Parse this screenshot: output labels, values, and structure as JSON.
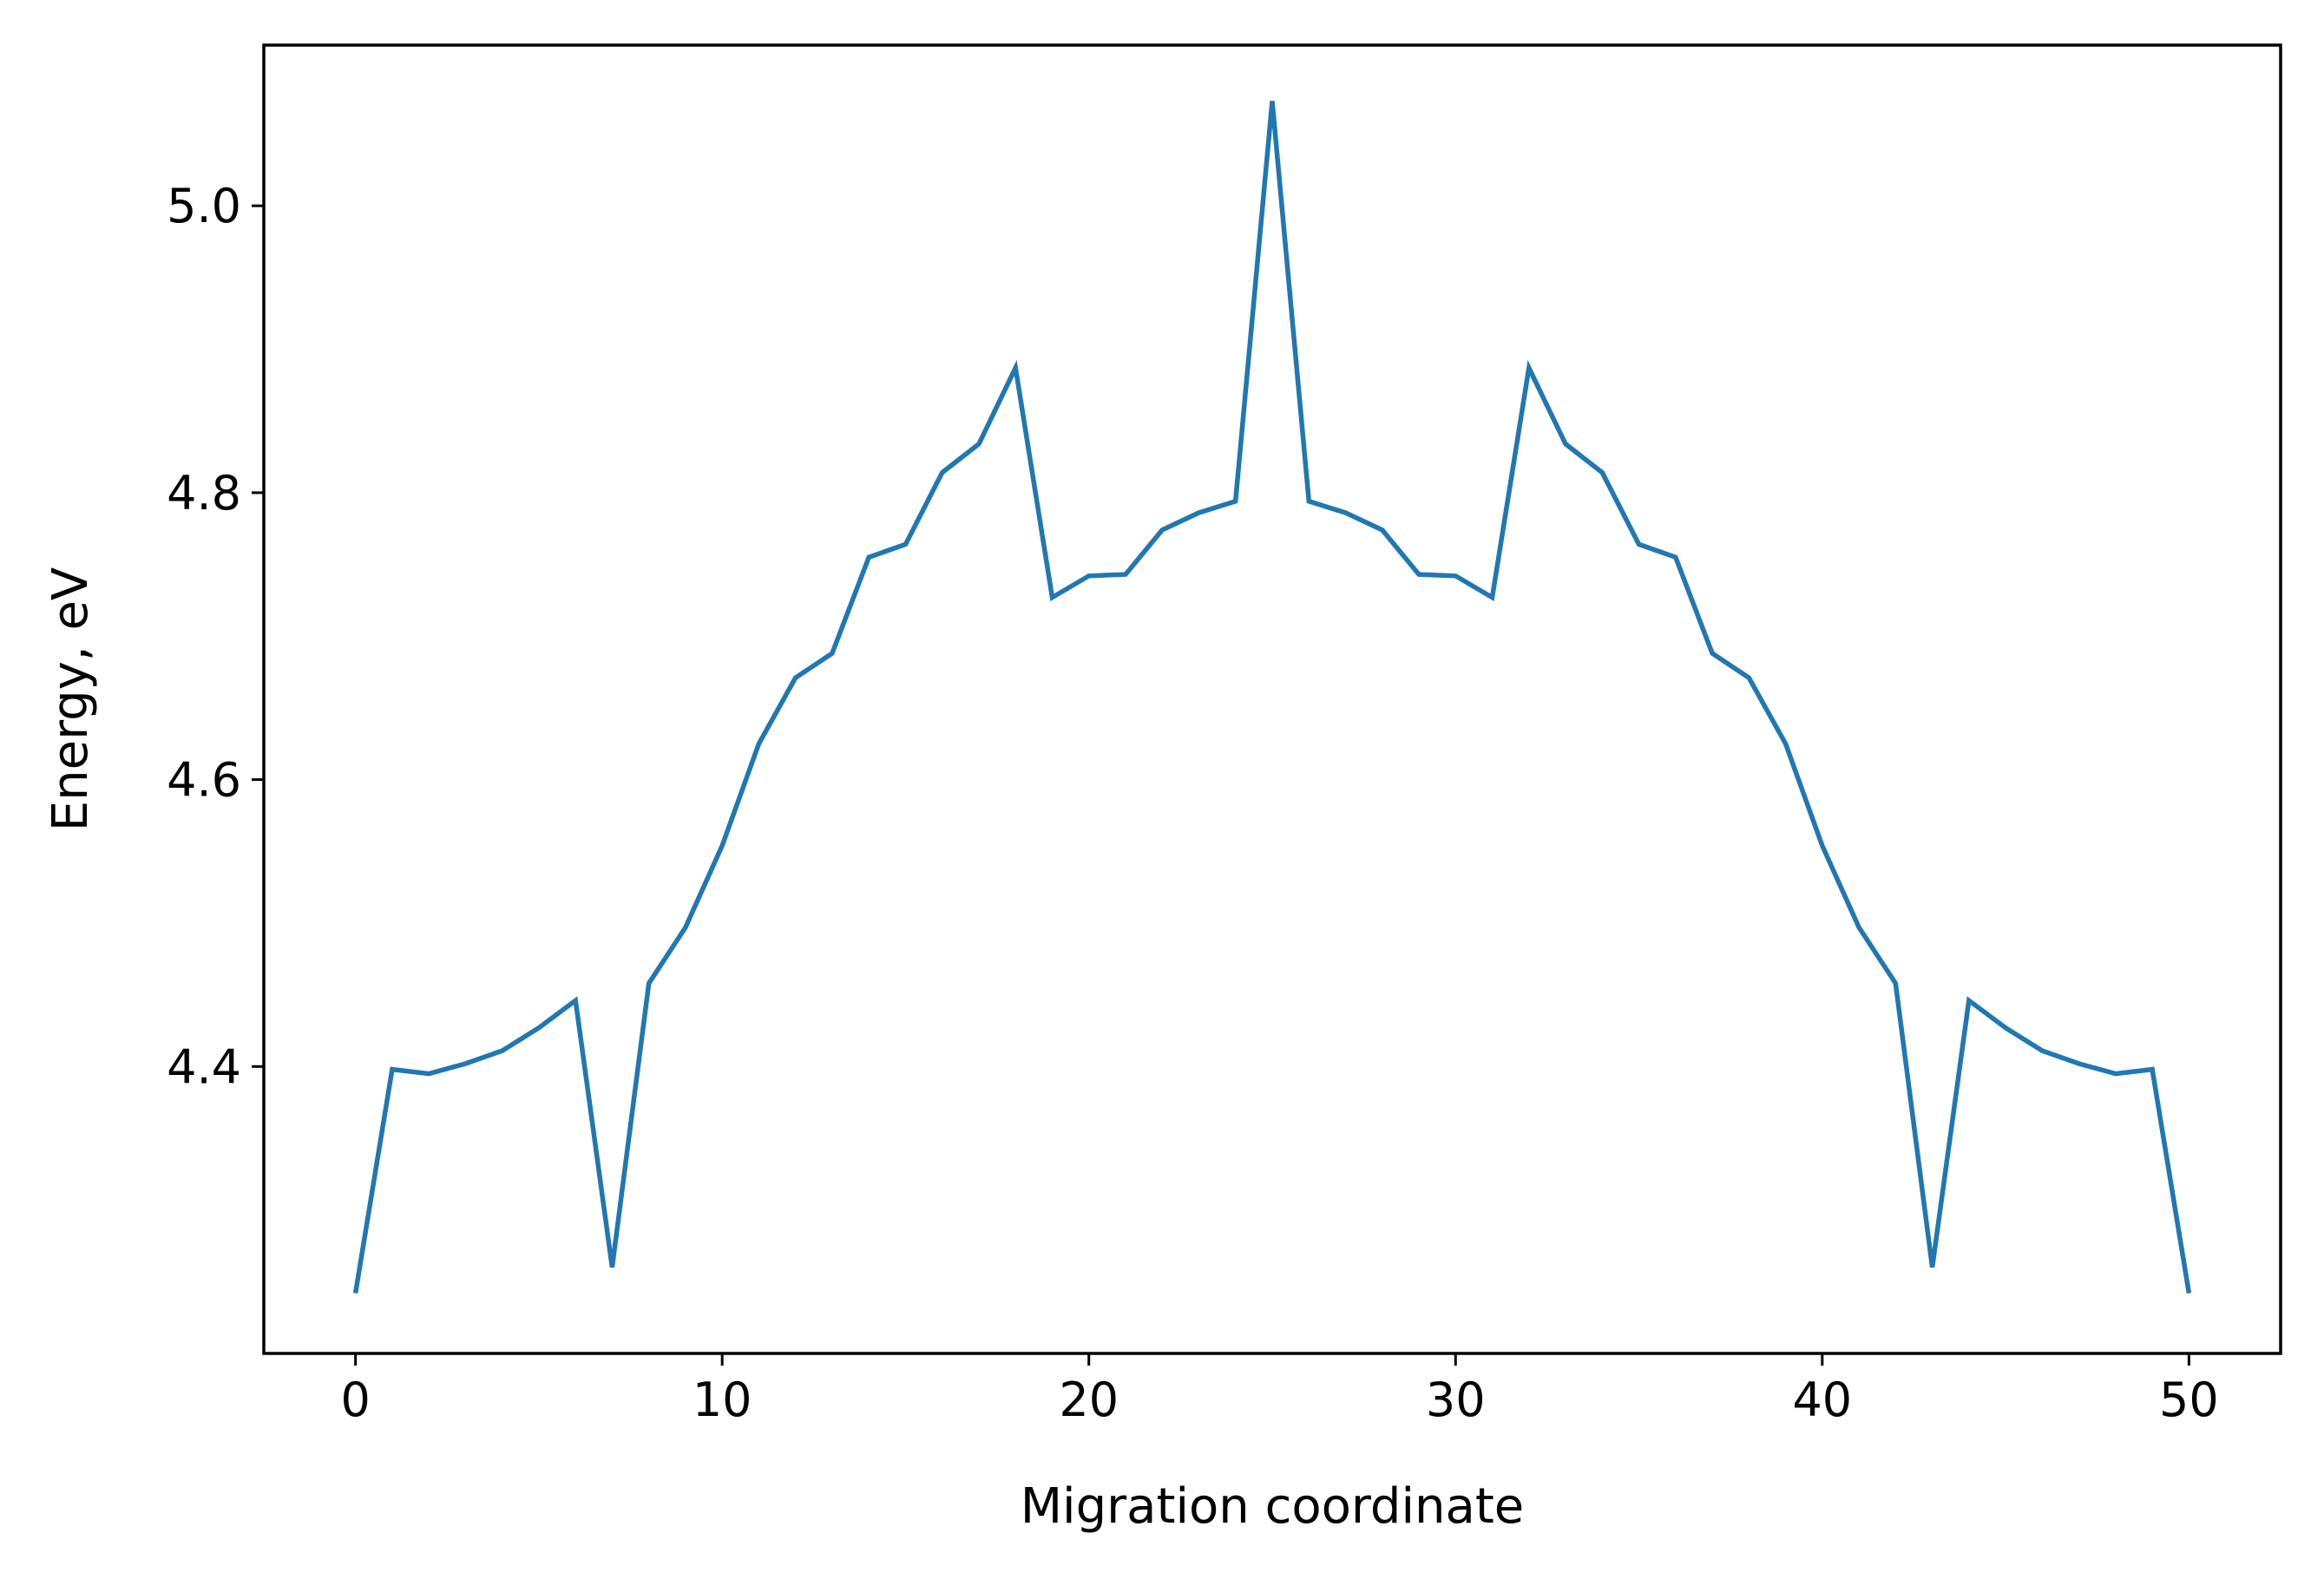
{
  "chart_data": {
    "type": "line",
    "title": "",
    "xlabel": "Migration coordinate",
    "ylabel": "Energy, eV",
    "xlim": [
      -2.5,
      52.5
    ],
    "ylim": [
      4.2,
      5.112
    ],
    "xticks": [
      0,
      10,
      20,
      30,
      40,
      50
    ],
    "xtick_labels": [
      "0",
      "10",
      "20",
      "30",
      "40",
      "50"
    ],
    "yticks": [
      4.4,
      4.6,
      4.8,
      5.0
    ],
    "ytick_labels": [
      "4.4",
      "4.6",
      "4.8",
      "5.0"
    ],
    "grid": false,
    "legend": "none",
    "color": "#1f77b4",
    "x": [
      0,
      1,
      2,
      3,
      4,
      5,
      6,
      7,
      8,
      9,
      10,
      11,
      12,
      13,
      14,
      15,
      16,
      17,
      18,
      19,
      20,
      21,
      22,
      23,
      24,
      25,
      26,
      27,
      28,
      29,
      30,
      31,
      32,
      33,
      34,
      35,
      36,
      37,
      38,
      39,
      40,
      41,
      42,
      43,
      44,
      45,
      46,
      47,
      48,
      49,
      50
    ],
    "series": [
      {
        "values": [
          4.242,
          4.398,
          4.395,
          4.402,
          4.411,
          4.427,
          4.446,
          4.26,
          4.458,
          4.497,
          4.554,
          4.625,
          4.671,
          4.688,
          4.755,
          4.764,
          4.814,
          4.834,
          4.887,
          4.727,
          4.742,
          4.743,
          4.774,
          4.786,
          4.794,
          5.073,
          4.794,
          4.786,
          4.774,
          4.743,
          4.742,
          4.727,
          4.887,
          4.834,
          4.814,
          4.764,
          4.755,
          4.688,
          4.671,
          4.625,
          4.554,
          4.497,
          4.458,
          4.26,
          4.446,
          4.427,
          4.411,
          4.402,
          4.395,
          4.398,
          4.242
        ]
      }
    ]
  }
}
